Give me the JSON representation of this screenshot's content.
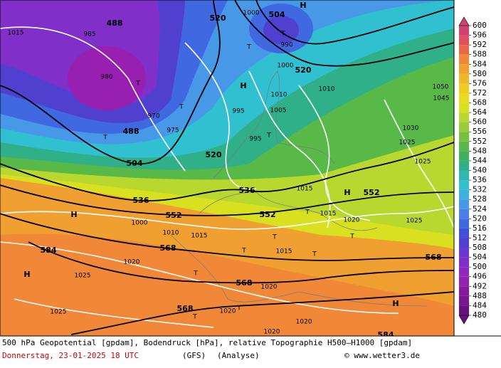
{
  "map": {
    "labels": [
      "488",
      "520",
      "504",
      "488",
      "504",
      "520",
      "520",
      "536",
      "536",
      "552",
      "552",
      "552",
      "568",
      "568",
      "568",
      "568",
      "584",
      "584",
      "H",
      "H",
      "H",
      "H",
      "H",
      "H",
      "T",
      "T",
      "T",
      "T",
      "T",
      "T",
      "T",
      "T",
      "T",
      "T",
      "T",
      "T",
      "T",
      "T",
      "985",
      "980",
      "975",
      "970",
      "995",
      "995",
      "1000",
      "1005",
      "1010",
      "1010",
      "1015",
      "1015",
      "1015",
      "1015",
      "1015",
      "1020",
      "1020",
      "1020",
      "1020",
      "1020",
      "1020",
      "1025",
      "1025",
      "1025",
      "1025",
      "1025",
      "1030",
      "1045",
      "1050",
      "1000",
      "1010",
      "990",
      "1000"
    ]
  },
  "legend": {
    "ticks": [
      600,
      596,
      592,
      588,
      584,
      580,
      576,
      572,
      568,
      564,
      560,
      556,
      552,
      548,
      544,
      540,
      536,
      532,
      528,
      524,
      520,
      516,
      512,
      508,
      504,
      500,
      496,
      492,
      488,
      484,
      480
    ],
    "colors": [
      "#d04070",
      "#e05060",
      "#e86848",
      "#f08838",
      "#f0a030",
      "#f0b828",
      "#f0cc20",
      "#e8dc20",
      "#d8e020",
      "#b8d830",
      "#98cc38",
      "#78c040",
      "#58b848",
      "#40b060",
      "#30b088",
      "#30b8b0",
      "#30c0d0",
      "#40b0e0",
      "#4898e8",
      "#4880e8",
      "#4068e0",
      "#4050d8",
      "#5040d0",
      "#6838d0",
      "#8030c8",
      "#9028c0",
      "#9820b0",
      "#8818a0",
      "#781890",
      "#681080"
    ]
  },
  "caption": {
    "line1": "500 hPa Geopotential [gpdam], Bodendruck [hPa], relative Topographie H500–H1000 [gpdam]",
    "date": "Donnerstag, 23-01-2025  18 UTC",
    "model": "(GFS)",
    "run": "(Analyse)",
    "copyright": "© www.wetter3.de"
  }
}
